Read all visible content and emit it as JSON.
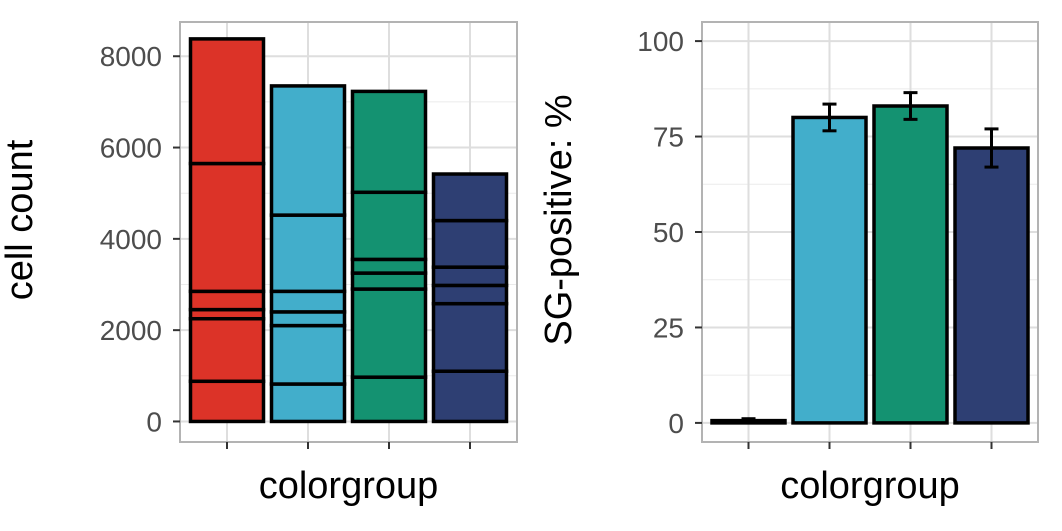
{
  "chart_data": [
    {
      "type": "bar",
      "stacked": true,
      "categories": [
        "",
        "",
        "",
        ""
      ],
      "fills": [
        "#DC3328",
        "#42AECB",
        "#149271",
        "#2E3F73"
      ],
      "segment_boundaries": [
        [
          0,
          880,
          2250,
          2450,
          2850,
          5650,
          8380
        ],
        [
          0,
          820,
          2100,
          2400,
          2850,
          4520,
          7350
        ],
        [
          0,
          970,
          2900,
          3250,
          3550,
          5020,
          7230
        ],
        [
          0,
          1100,
          2580,
          2980,
          3380,
          4400,
          5420
        ]
      ],
      "xlabel": "colorgroup",
      "ylabel": "cell count",
      "ylim": [
        -450,
        8750
      ],
      "yticks": [
        0,
        2000,
        4000,
        6000,
        8000
      ],
      "grid": true,
      "legend": "none"
    },
    {
      "type": "bar",
      "error_bars": true,
      "categories": [
        "",
        "",
        "",
        ""
      ],
      "fills": [
        "#000000",
        "#42AECB",
        "#149271",
        "#2E3F73"
      ],
      "values": [
        0.6,
        80,
        83,
        72
      ],
      "error_low": [
        0.1,
        76.5,
        79.5,
        67
      ],
      "error_high": [
        1.1,
        83.5,
        86.5,
        77
      ],
      "xlabel": "colorgroup",
      "ylabel": "SG-positive: %",
      "ylim": [
        -5,
        105
      ],
      "yticks": [
        0,
        25,
        50,
        75,
        100
      ],
      "grid": true,
      "legend": "none"
    }
  ]
}
